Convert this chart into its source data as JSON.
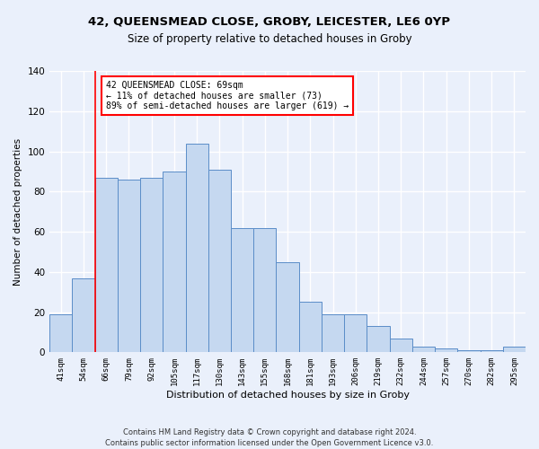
{
  "title_actual": "42, QUEENSMEAD CLOSE, GROBY, LEICESTER, LE6 0YP",
  "subtitle": "Size of property relative to detached houses in Groby",
  "xlabel": "Distribution of detached houses by size in Groby",
  "ylabel": "Number of detached properties",
  "categories": [
    "41sqm",
    "54sqm",
    "66sqm",
    "79sqm",
    "92sqm",
    "105sqm",
    "117sqm",
    "130sqm",
    "143sqm",
    "155sqm",
    "168sqm",
    "181sqm",
    "193sqm",
    "206sqm",
    "219sqm",
    "232sqm",
    "244sqm",
    "257sqm",
    "270sqm",
    "282sqm",
    "295sqm"
  ],
  "values": [
    19,
    37,
    87,
    86,
    87,
    90,
    104,
    91,
    62,
    62,
    45,
    25,
    19,
    19,
    13,
    7,
    3,
    2,
    1,
    1,
    3
  ],
  "bar_color": "#c5d8f0",
  "bar_edge_color": "#5b8dc8",
  "annotation_text_lines": [
    "42 QUEENSMEAD CLOSE: 69sqm",
    "← 11% of detached houses are smaller (73)",
    "89% of semi-detached houses are larger (619) →"
  ],
  "annotation_box_color": "white",
  "annotation_box_edge": "red",
  "vline_color": "red",
  "vline_bin": 1.5,
  "ylim": [
    0,
    140
  ],
  "yticks": [
    0,
    20,
    40,
    60,
    80,
    100,
    120,
    140
  ],
  "footer_line1": "Contains HM Land Registry data © Crown copyright and database right 2024.",
  "footer_line2": "Contains public sector information licensed under the Open Government Licence v3.0.",
  "bg_color": "#eaf0fb",
  "grid_color": "white"
}
